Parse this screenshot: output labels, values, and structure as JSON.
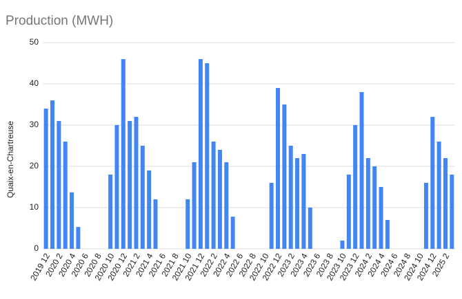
{
  "chart_data": {
    "type": "bar",
    "title": "Production (MWH)",
    "y_label": "Quaix-en-Chartreuse",
    "categories": [
      "2019 12",
      null,
      "2020 2",
      null,
      "2020 4",
      null,
      "2020 6",
      null,
      "2020 8",
      null,
      "2020 10",
      null,
      "2020 12",
      null,
      "2021 2",
      null,
      "2021 4",
      null,
      "2021 6",
      null,
      "2021 8",
      null,
      "2021 10",
      null,
      "2021 12",
      null,
      "2022 2",
      null,
      "2022 4",
      null,
      "2022 6",
      null,
      "2022 8",
      null,
      "2022 10",
      null,
      "2022 12",
      null,
      "2023 2",
      null,
      "2023 4",
      null,
      "2023 6",
      null,
      "2023 8",
      null,
      "2023 10",
      null,
      "2023 12",
      null,
      "2024 2",
      null,
      "2024 4",
      null,
      "2024 6",
      null,
      "2024 8",
      null,
      "2024 10",
      null,
      "2024 12",
      null,
      "2025 2",
      null
    ],
    "values": [
      34,
      36,
      31,
      26,
      13.7,
      5.3,
      0,
      0,
      0,
      0,
      18,
      30,
      46,
      31,
      32,
      25,
      19,
      12,
      0,
      0,
      0,
      0,
      12,
      21,
      46,
      45,
      26,
      24,
      21,
      7.8,
      0,
      0,
      0,
      0,
      0,
      16,
      39,
      35,
      25,
      22,
      23,
      10,
      0,
      0,
      0,
      0,
      2,
      18,
      30,
      38,
      22,
      20,
      15,
      7,
      0,
      0,
      0,
      0,
      0,
      16,
      32,
      26,
      22,
      18
    ],
    "color": "#4285f4",
    "ylim": [
      0,
      50
    ],
    "yticks": [
      0,
      10,
      20,
      30,
      40,
      50
    ],
    "grid": true
  }
}
